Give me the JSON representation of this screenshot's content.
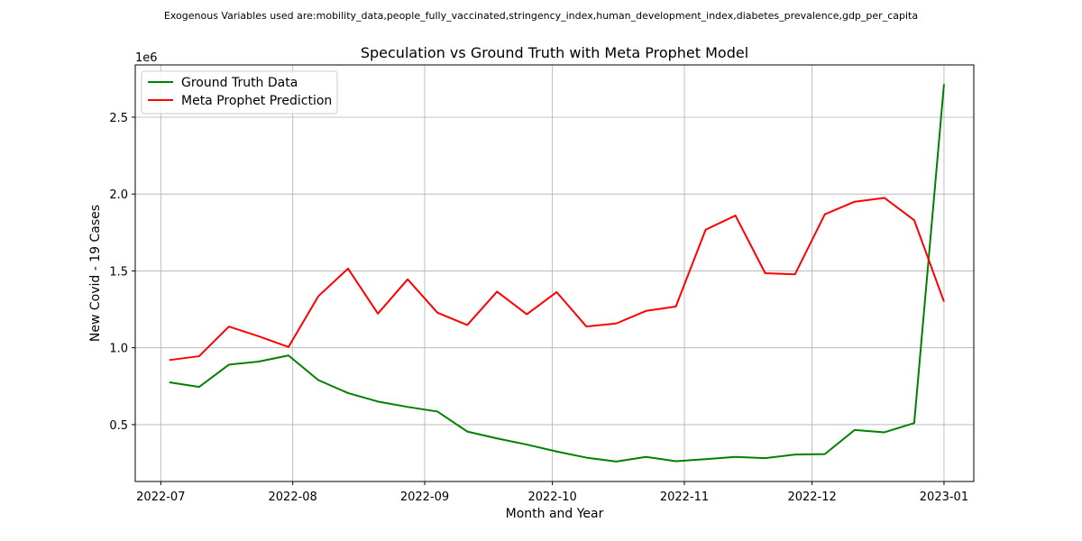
{
  "suptitle": "Exogenous Variables used are:mobility_data,people_fully_vaccinated,stringency_index,human_development_index,diabetes_prevalence,gdp_per_capita",
  "chart_data": {
    "type": "line",
    "title": "Speculation vs Ground Truth with Meta Prophet Model",
    "xlabel": "Month and Year",
    "ylabel": "New Covid - 19 Cases",
    "y_offset_text": "1e6",
    "grid": true,
    "legend_position": "upper left",
    "xlim": [
      "2022-06-25",
      "2023-01-08"
    ],
    "ylim": [
      0.13,
      2.84
    ],
    "x_ticks": [
      "2022-07-01",
      "2022-08-01",
      "2022-09-01",
      "2022-10-01",
      "2022-11-01",
      "2022-12-01",
      "2023-01-01"
    ],
    "x_tick_labels": [
      "2022-07",
      "2022-08",
      "2022-09",
      "2022-10",
      "2022-11",
      "2022-12",
      "2023-01"
    ],
    "y_ticks": [
      0.5,
      1.0,
      1.5,
      2.0,
      2.5
    ],
    "y_tick_labels": [
      "0.5",
      "1.0",
      "1.5",
      "2.0",
      "2.5"
    ],
    "x": [
      "2022-07-03",
      "2022-07-10",
      "2022-07-17",
      "2022-07-24",
      "2022-07-31",
      "2022-08-07",
      "2022-08-14",
      "2022-08-21",
      "2022-08-28",
      "2022-09-04",
      "2022-09-11",
      "2022-09-18",
      "2022-09-25",
      "2022-10-02",
      "2022-10-09",
      "2022-10-16",
      "2022-10-23",
      "2022-10-30",
      "2022-11-06",
      "2022-11-13",
      "2022-11-20",
      "2022-11-27",
      "2022-12-04",
      "2022-12-11",
      "2022-12-18",
      "2022-12-25",
      "2023-01-01"
    ],
    "series": [
      {
        "name": "Ground Truth Data",
        "color": "#008000",
        "values": [
          0.775,
          0.745,
          0.89,
          0.91,
          0.95,
          0.79,
          0.705,
          0.65,
          0.615,
          0.585,
          0.455,
          0.41,
          0.37,
          0.325,
          0.285,
          0.26,
          0.29,
          0.262,
          0.275,
          0.29,
          0.282,
          0.305,
          0.308,
          0.465,
          0.45,
          0.51,
          2.715
        ]
      },
      {
        "name": "Meta Prophet Prediction",
        "color": "#ff0000",
        "values": [
          0.92,
          0.945,
          1.138,
          1.075,
          1.005,
          1.335,
          1.515,
          1.222,
          1.445,
          1.228,
          1.148,
          1.365,
          1.218,
          1.362,
          1.138,
          1.158,
          1.24,
          1.268,
          1.768,
          1.86,
          1.485,
          1.478,
          1.868,
          1.95,
          1.975,
          1.83,
          1.3
        ]
      }
    ]
  }
}
